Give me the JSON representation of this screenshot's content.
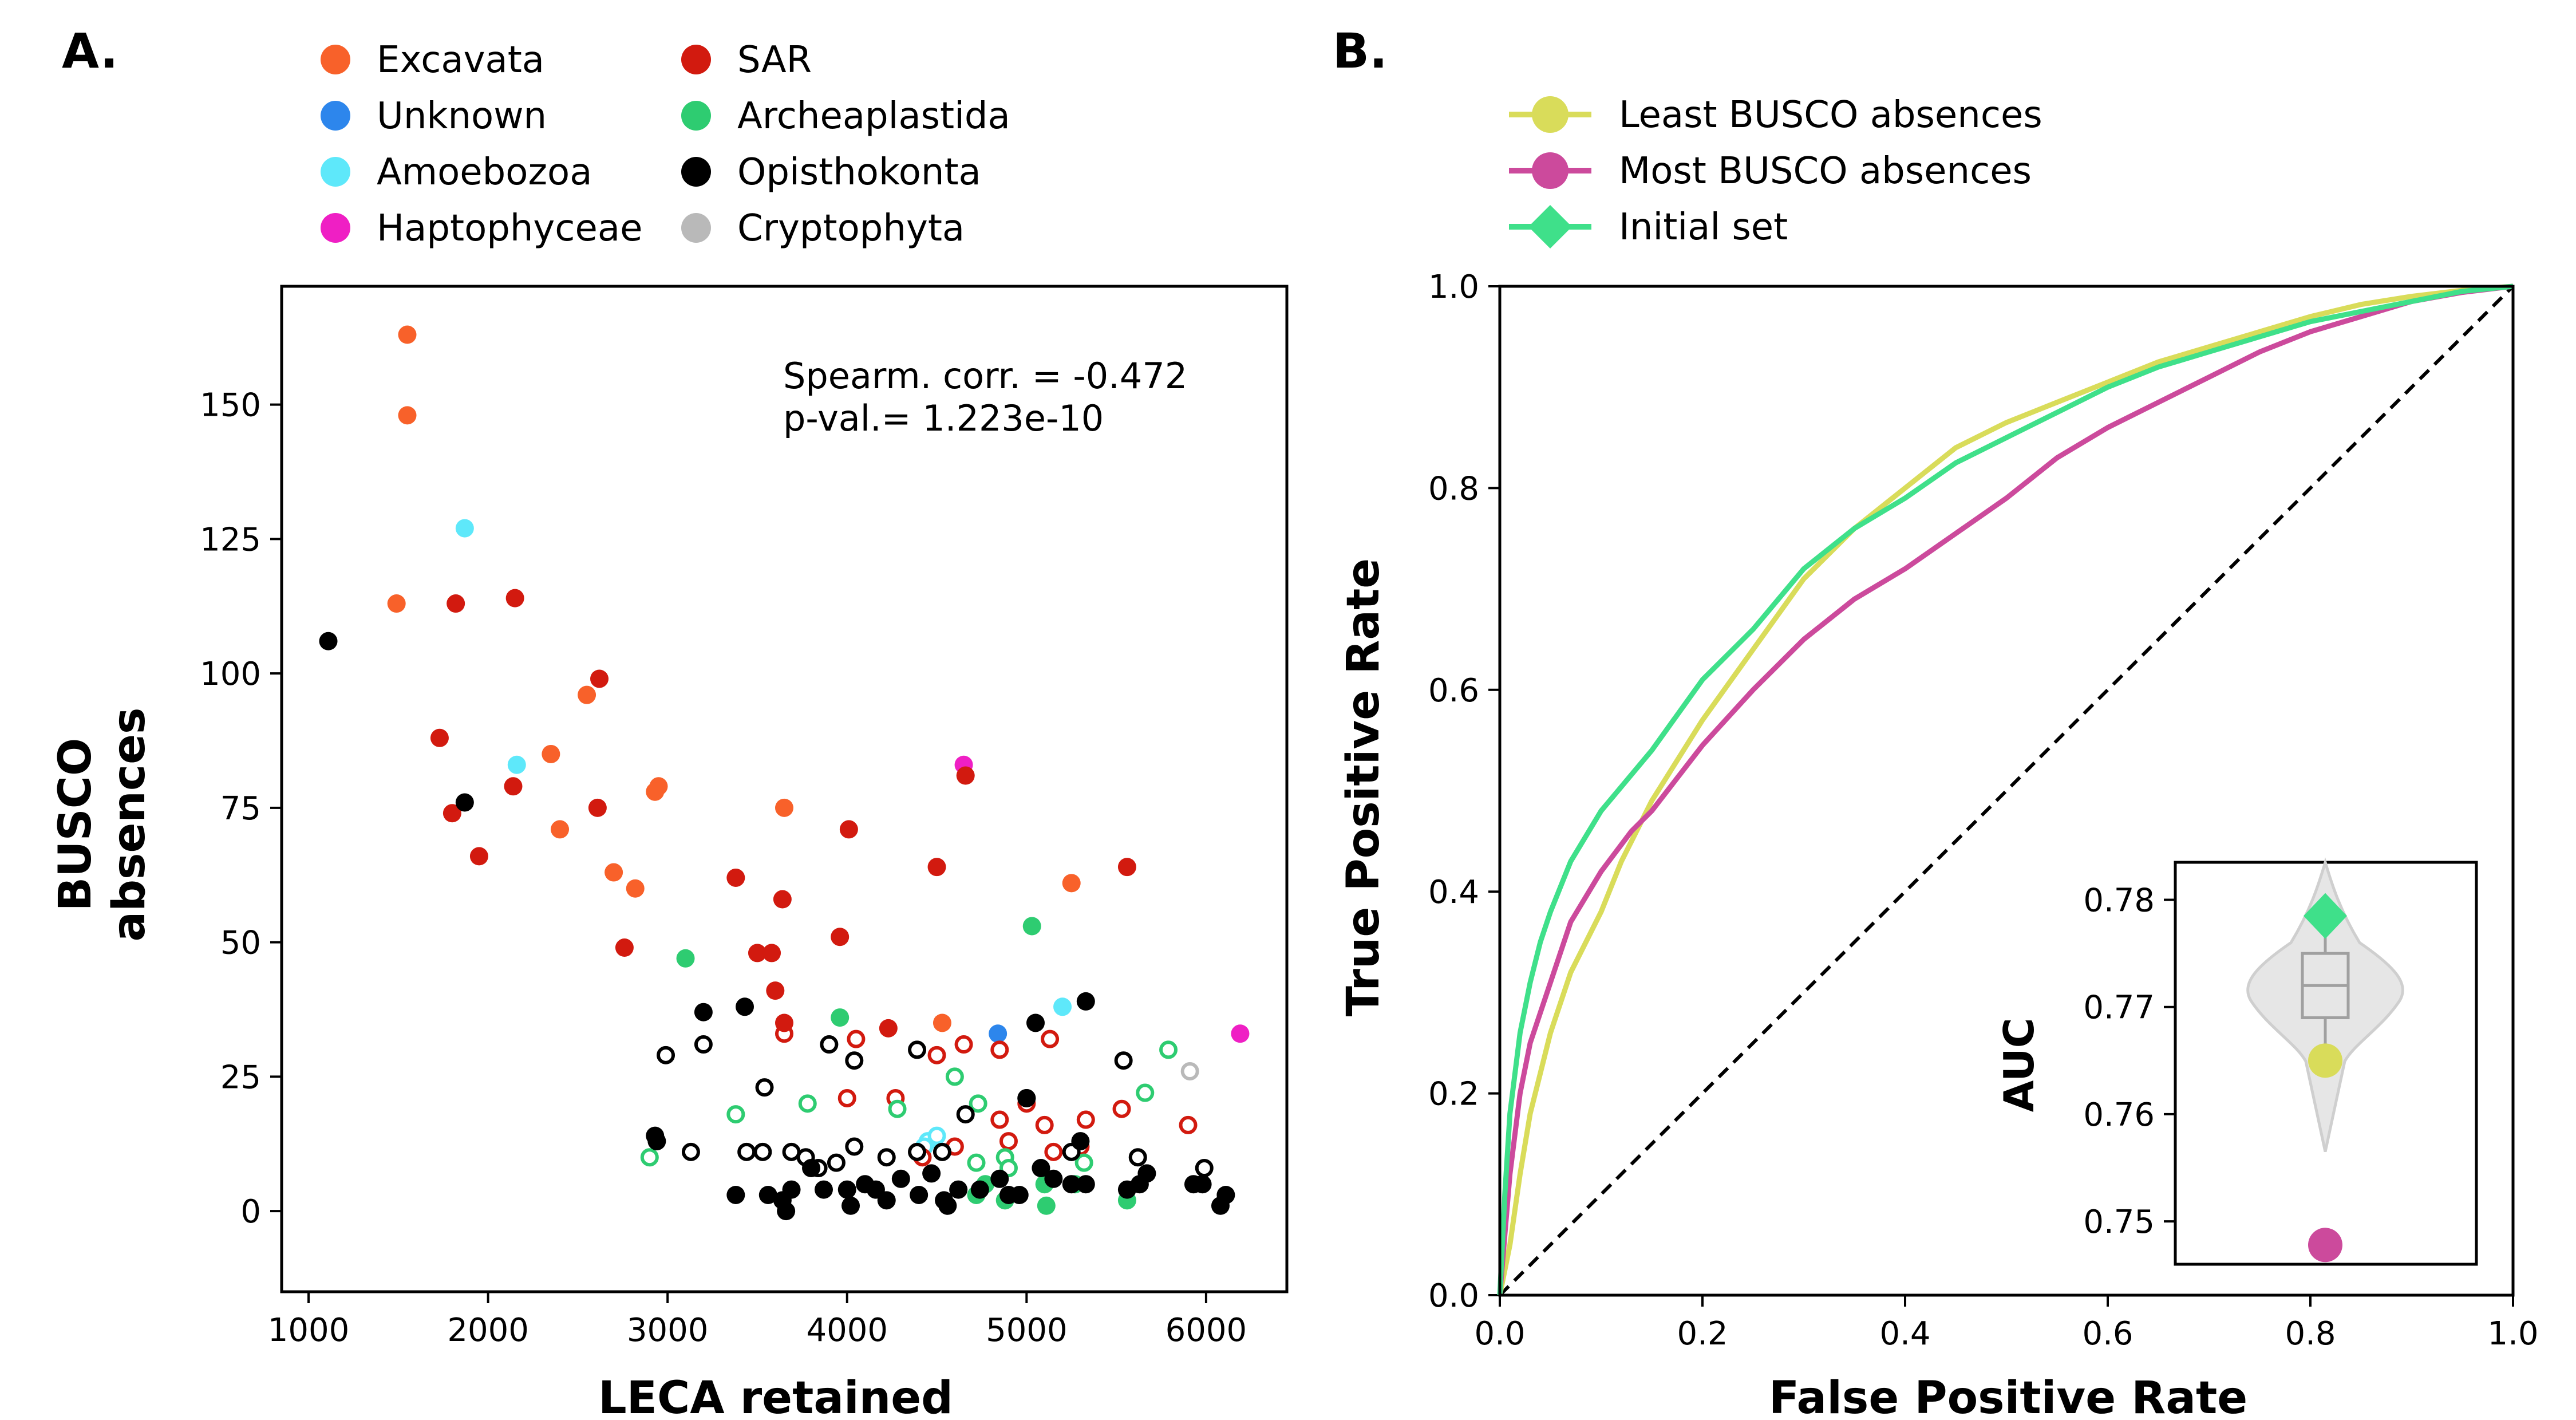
{
  "chart_data": [
    {
      "panel_label": "A.",
      "type": "scatter",
      "xlabel": "LECA retained",
      "ylabel_lines": [
        "BUSCO",
        "absences"
      ],
      "xlim": [
        850,
        6450
      ],
      "ylim": [
        -15,
        172
      ],
      "xticks": [
        1000,
        2000,
        3000,
        4000,
        5000,
        6000
      ],
      "yticks": [
        0,
        25,
        50,
        75,
        100,
        125,
        150
      ],
      "annotation": [
        "Spearm. corr. = -0.472",
        "p-val.= 1.223e-10"
      ],
      "legend_columns": [
        [
          "Excavata",
          "Unknown",
          "Amoebozoa",
          "Haptophyceae"
        ],
        [
          "SAR",
          "Archeaplastida",
          "Opisthokonta",
          "Cryptophyta"
        ]
      ],
      "colors": {
        "Excavata": "#f8612a",
        "Unknown": "#2d86ec",
        "Amoebozoa": "#5ee8fa",
        "Haptophyceae": "#ef1fc4",
        "SAR": "#d21a0f",
        "Archeaplastida": "#2ecc71",
        "Opisthokonta": "#000000",
        "Cryptophyta": "#b9b9b9"
      },
      "series": [
        {
          "name": "Excavata",
          "filled": [
            [
              1550,
              163
            ],
            [
              1550,
              148
            ],
            [
              1490,
              113
            ],
            [
              2550,
              96
            ],
            [
              2350,
              85
            ],
            [
              2950,
              79
            ],
            [
              2930,
              78
            ],
            [
              2400,
              71
            ],
            [
              3650,
              75
            ],
            [
              2700,
              63
            ],
            [
              2820,
              60
            ],
            [
              4530,
              35
            ],
            [
              5250,
              61
            ]
          ],
          "hollow": []
        },
        {
          "name": "Unknown",
          "filled": [
            [
              4840,
              33
            ]
          ],
          "hollow": []
        },
        {
          "name": "Amoebozoa",
          "filled": [
            [
              1870,
              127
            ],
            [
              2160,
              83
            ],
            [
              5200,
              38
            ]
          ],
          "hollow": [
            [
              4450,
              13
            ],
            [
              4500,
              14
            ],
            [
              4430,
              12
            ]
          ]
        },
        {
          "name": "Haptophyceae",
          "filled": [
            [
              4650,
              83
            ],
            [
              6190,
              33
            ]
          ],
          "hollow": []
        },
        {
          "name": "SAR",
          "filled": [
            [
              1820,
              113
            ],
            [
              2150,
              114
            ],
            [
              2620,
              99
            ],
            [
              1730,
              88
            ],
            [
              2140,
              79
            ],
            [
              1800,
              74
            ],
            [
              1950,
              66
            ],
            [
              2610,
              75
            ],
            [
              4660,
              81
            ],
            [
              4010,
              71
            ],
            [
              4500,
              64
            ],
            [
              5560,
              64
            ],
            [
              3380,
              62
            ],
            [
              3640,
              58
            ],
            [
              2760,
              49
            ],
            [
              3500,
              48
            ],
            [
              3580,
              48
            ],
            [
              3960,
              51
            ],
            [
              3600,
              41
            ],
            [
              3650,
              35
            ],
            [
              4230,
              34
            ]
          ],
          "hollow": [
            [
              3650,
              33
            ],
            [
              4050,
              32
            ],
            [
              4650,
              31
            ],
            [
              4850,
              30
            ],
            [
              5130,
              32
            ],
            [
              4500,
              29
            ],
            [
              4000,
              21
            ],
            [
              4270,
              21
            ],
            [
              4850,
              17
            ],
            [
              5000,
              20
            ],
            [
              5100,
              16
            ],
            [
              5330,
              17
            ],
            [
              5530,
              19
            ],
            [
              5900,
              16
            ],
            [
              4420,
              10
            ],
            [
              4600,
              12
            ],
            [
              4900,
              13
            ],
            [
              5150,
              11
            ],
            [
              5300,
              12
            ]
          ]
        },
        {
          "name": "Archeaplastida",
          "filled": [
            [
              3100,
              47
            ],
            [
              3960,
              36
            ],
            [
              5030,
              53
            ],
            [
              4720,
              3
            ],
            [
              4770,
              5
            ],
            [
              4880,
              2
            ],
            [
              5100,
              5
            ],
            [
              5270,
              5
            ],
            [
              5560,
              2
            ],
            [
              5110,
              1
            ]
          ],
          "hollow": [
            [
              2900,
              10
            ],
            [
              3380,
              18
            ],
            [
              3780,
              20
            ],
            [
              4280,
              19
            ],
            [
              4600,
              25
            ],
            [
              4730,
              20
            ],
            [
              5660,
              22
            ],
            [
              5790,
              30
            ],
            [
              4720,
              9
            ],
            [
              4880,
              10
            ],
            [
              5320,
              9
            ],
            [
              4900,
              8
            ]
          ]
        },
        {
          "name": "Opisthokonta",
          "filled": [
            [
              1110,
              106
            ],
            [
              1870,
              76
            ],
            [
              3200,
              37
            ],
            [
              3430,
              38
            ],
            [
              5050,
              35
            ],
            [
              5330,
              39
            ],
            [
              2930,
              14
            ],
            [
              2940,
              13
            ],
            [
              3380,
              3
            ],
            [
              3560,
              3
            ],
            [
              3640,
              2
            ],
            [
              3690,
              4
            ],
            [
              3660,
              0
            ],
            [
              3800,
              8
            ],
            [
              3870,
              4
            ],
            [
              4000,
              4
            ],
            [
              4100,
              5
            ],
            [
              4160,
              4
            ],
            [
              4220,
              2
            ],
            [
              4300,
              6
            ],
            [
              4400,
              3
            ],
            [
              4470,
              7
            ],
            [
              4540,
              2
            ],
            [
              4620,
              4
            ],
            [
              4740,
              4
            ],
            [
              4850,
              6
            ],
            [
              4900,
              3
            ],
            [
              4960,
              3
            ],
            [
              5000,
              21
            ],
            [
              5080,
              8
            ],
            [
              5150,
              6
            ],
            [
              5250,
              5
            ],
            [
              5300,
              13
            ],
            [
              5330,
              5
            ],
            [
              5560,
              4
            ],
            [
              5630,
              5
            ],
            [
              5670,
              7
            ],
            [
              5930,
              5
            ],
            [
              5980,
              5
            ],
            [
              6080,
              1
            ],
            [
              6110,
              3
            ],
            [
              4020,
              1
            ],
            [
              4560,
              1
            ]
          ],
          "hollow": [
            [
              3200,
              31
            ],
            [
              2990,
              29
            ],
            [
              3540,
              23
            ],
            [
              3900,
              31
            ],
            [
              4040,
              28
            ],
            [
              4390,
              30
            ],
            [
              3130,
              11
            ],
            [
              3440,
              11
            ],
            [
              3530,
              11
            ],
            [
              3690,
              11
            ],
            [
              3770,
              10
            ],
            [
              3840,
              8
            ],
            [
              3940,
              9
            ],
            [
              4040,
              12
            ],
            [
              4220,
              10
            ],
            [
              4390,
              11
            ],
            [
              4530,
              11
            ],
            [
              4660,
              18
            ],
            [
              5000,
              21
            ],
            [
              5250,
              11
            ],
            [
              5540,
              28
            ],
            [
              5620,
              10
            ],
            [
              5990,
              8
            ]
          ]
        },
        {
          "name": "Cryptophyta",
          "filled": [],
          "hollow": [
            [
              5910,
              26
            ]
          ]
        }
      ]
    },
    {
      "panel_label": "B.",
      "type": "line",
      "xlabel": "False Positive Rate",
      "ylabel": "True Positive Rate",
      "xlim": [
        0,
        1
      ],
      "ylim": [
        0,
        1
      ],
      "xticks": [
        "0.0",
        "0.2",
        "0.4",
        "0.6",
        "0.8",
        "1.0"
      ],
      "yticks": [
        "0.0",
        "0.2",
        "0.4",
        "0.6",
        "0.8",
        "1.0"
      ],
      "series": [
        {
          "name": "Least BUSCO absences",
          "color": "#d9dc5a",
          "marker": "circle",
          "points": [
            [
              0,
              0
            ],
            [
              0.01,
              0.05
            ],
            [
              0.02,
              0.12
            ],
            [
              0.03,
              0.18
            ],
            [
              0.04,
              0.22
            ],
            [
              0.05,
              0.26
            ],
            [
              0.07,
              0.32
            ],
            [
              0.1,
              0.38
            ],
            [
              0.12,
              0.43
            ],
            [
              0.15,
              0.49
            ],
            [
              0.2,
              0.57
            ],
            [
              0.25,
              0.64
            ],
            [
              0.3,
              0.71
            ],
            [
              0.35,
              0.76
            ],
            [
              0.4,
              0.8
            ],
            [
              0.45,
              0.84
            ],
            [
              0.5,
              0.865
            ],
            [
              0.55,
              0.885
            ],
            [
              0.6,
              0.905
            ],
            [
              0.65,
              0.925
            ],
            [
              0.7,
              0.94
            ],
            [
              0.75,
              0.955
            ],
            [
              0.8,
              0.97
            ],
            [
              0.85,
              0.982
            ],
            [
              0.9,
              0.99
            ],
            [
              0.95,
              0.996
            ],
            [
              1,
              1
            ]
          ]
        },
        {
          "name": "Most BUSCO absences",
          "color": "#cc4a9c",
          "marker": "circle",
          "points": [
            [
              0,
              0
            ],
            [
              0.005,
              0.06
            ],
            [
              0.01,
              0.12
            ],
            [
              0.02,
              0.2
            ],
            [
              0.03,
              0.25
            ],
            [
              0.05,
              0.31
            ],
            [
              0.07,
              0.37
            ],
            [
              0.1,
              0.42
            ],
            [
              0.13,
              0.46
            ],
            [
              0.15,
              0.48
            ],
            [
              0.2,
              0.545
            ],
            [
              0.25,
              0.6
            ],
            [
              0.3,
              0.65
            ],
            [
              0.35,
              0.69
            ],
            [
              0.4,
              0.72
            ],
            [
              0.45,
              0.755
            ],
            [
              0.5,
              0.79
            ],
            [
              0.55,
              0.83
            ],
            [
              0.6,
              0.86
            ],
            [
              0.65,
              0.885
            ],
            [
              0.7,
              0.91
            ],
            [
              0.75,
              0.935
            ],
            [
              0.8,
              0.955
            ],
            [
              0.85,
              0.97
            ],
            [
              0.9,
              0.985
            ],
            [
              0.95,
              0.994
            ],
            [
              1,
              1
            ]
          ]
        },
        {
          "name": "Initial set",
          "color": "#3fe08a",
          "marker": "diamond",
          "points": [
            [
              0,
              0
            ],
            [
              0.005,
              0.1
            ],
            [
              0.01,
              0.18
            ],
            [
              0.02,
              0.26
            ],
            [
              0.03,
              0.31
            ],
            [
              0.04,
              0.35
            ],
            [
              0.05,
              0.38
            ],
            [
              0.07,
              0.43
            ],
            [
              0.1,
              0.48
            ],
            [
              0.15,
              0.54
            ],
            [
              0.2,
              0.61
            ],
            [
              0.25,
              0.66
            ],
            [
              0.3,
              0.72
            ],
            [
              0.35,
              0.76
            ],
            [
              0.4,
              0.79
            ],
            [
              0.45,
              0.825
            ],
            [
              0.5,
              0.85
            ],
            [
              0.55,
              0.875
            ],
            [
              0.6,
              0.9
            ],
            [
              0.65,
              0.92
            ],
            [
              0.7,
              0.935
            ],
            [
              0.75,
              0.95
            ],
            [
              0.8,
              0.965
            ],
            [
              0.85,
              0.975
            ],
            [
              0.9,
              0.985
            ],
            [
              0.95,
              0.995
            ],
            [
              1,
              1
            ]
          ]
        }
      ],
      "diagonal": true,
      "inset": {
        "type": "violin",
        "ylabel": "AUC",
        "ylim": [
          0.746,
          0.7835
        ],
        "yticks": [
          "0.75",
          "0.76",
          "0.77",
          "0.78"
        ],
        "box": {
          "q1": 0.769,
          "median": 0.772,
          "q3": 0.775,
          "whisker_low": 0.7635,
          "whisker_high": 0.7795
        },
        "markers": [
          {
            "name": "Initial set",
            "value": 0.7785,
            "color": "#3fe08a",
            "shape": "diamond"
          },
          {
            "name": "Least BUSCO absences",
            "value": 0.765,
            "color": "#d9dc5a",
            "shape": "circle"
          },
          {
            "name": "Most BUSCO absences",
            "value": 0.7478,
            "color": "#cc4a9c",
            "shape": "circle"
          }
        ]
      }
    }
  ]
}
